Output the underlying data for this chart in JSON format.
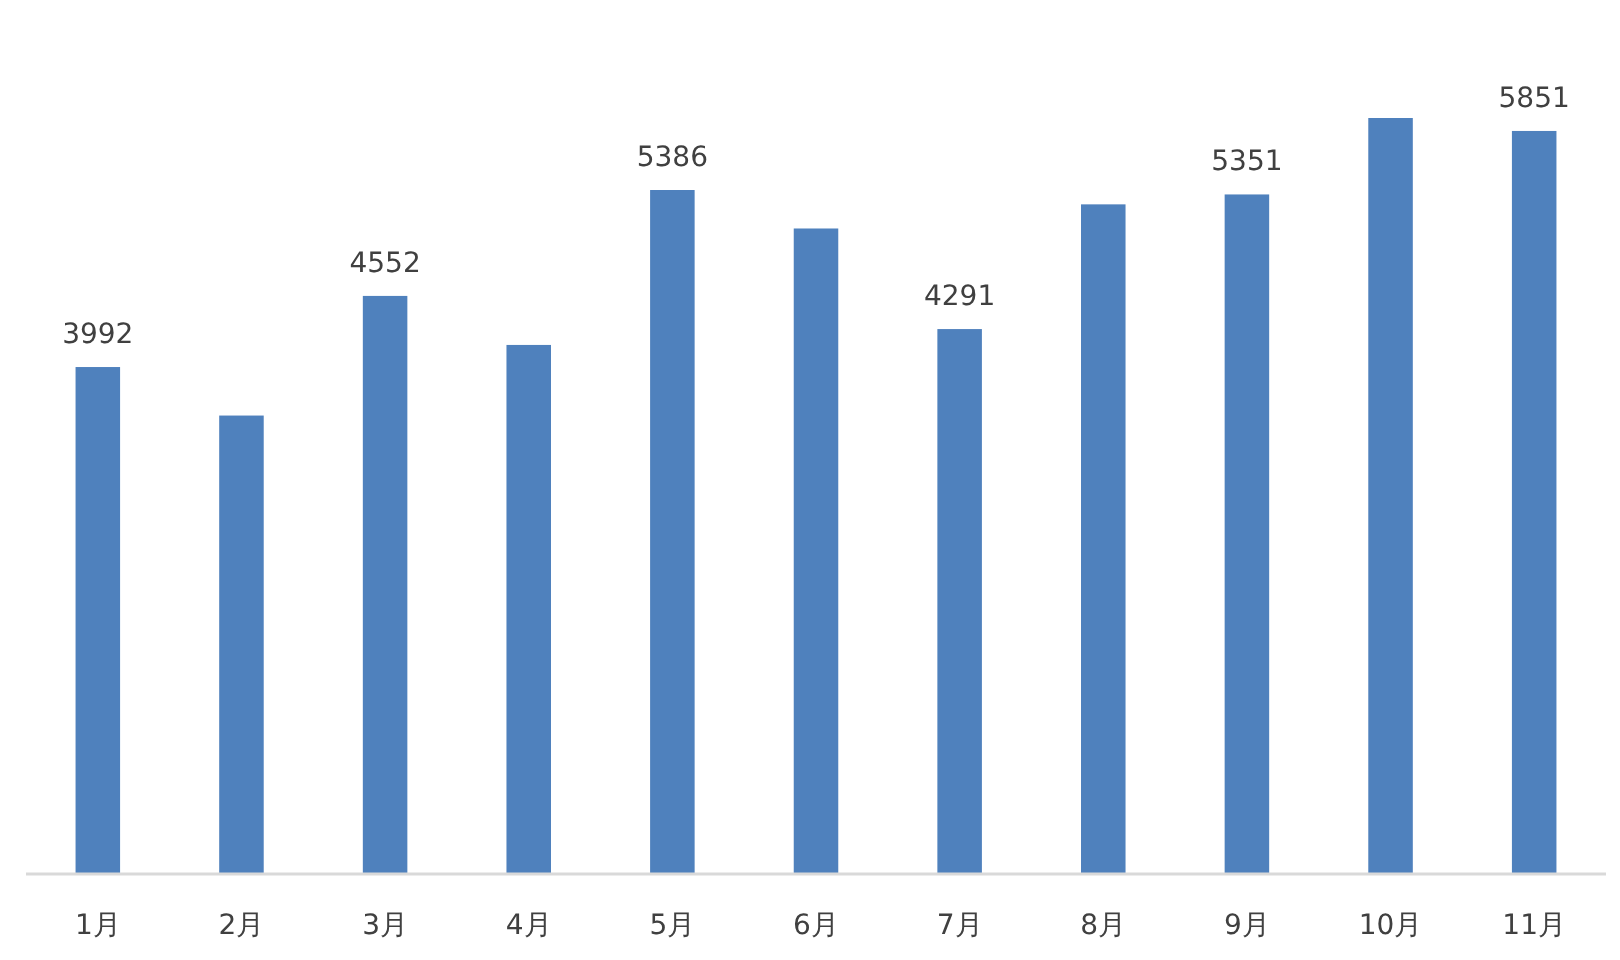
{
  "chart_data": {
    "type": "bar",
    "categories": [
      "1月",
      "2月",
      "3月",
      "4月",
      "5月",
      "6月",
      "7月",
      "8月",
      "9月",
      "10月",
      "11月"
    ],
    "values": [
      3992,
      3610,
      4552,
      4166,
      5386,
      5083,
      4291,
      5273,
      5351,
      5953,
      5851
    ],
    "value_labels": [
      "3992",
      null,
      "4552",
      null,
      "5386",
      null,
      "4291",
      null,
      "5351",
      null,
      "5851"
    ],
    "color": "#4f81bd"
  }
}
